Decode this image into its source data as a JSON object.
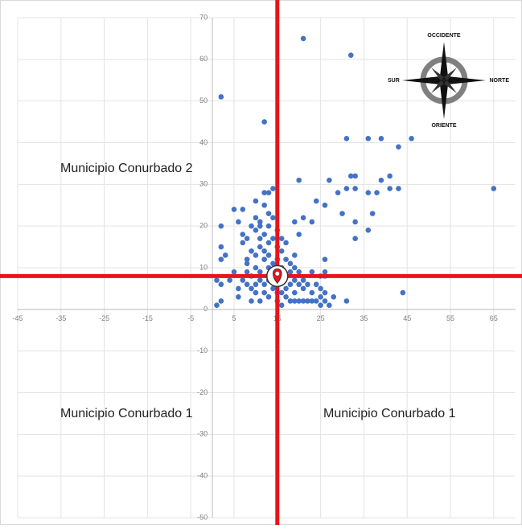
{
  "chart_data": {
    "type": "scatter",
    "x": [
      2,
      12,
      21,
      32,
      65,
      44,
      46,
      31,
      36,
      39,
      43,
      41,
      39,
      33,
      32,
      31,
      33,
      36,
      38,
      41,
      43,
      37,
      36,
      33,
      33,
      29,
      30,
      27,
      20,
      24,
      26,
      28,
      31,
      27,
      26,
      26,
      23,
      21,
      19,
      20,
      1,
      1,
      2,
      2,
      2,
      2,
      2,
      3,
      4,
      5,
      5,
      6,
      6,
      6,
      7,
      7,
      7,
      7,
      8,
      8,
      8,
      8,
      8,
      9,
      9,
      9,
      9,
      9,
      10,
      10,
      10,
      10,
      10,
      10,
      10,
      11,
      11,
      11,
      11,
      11,
      11,
      11,
      12,
      12,
      12,
      12,
      12,
      12,
      12,
      13,
      13,
      13,
      13,
      13,
      13,
      13,
      13,
      14,
      14,
      14,
      14,
      14,
      14,
      15,
      15,
      15,
      15,
      15,
      15,
      15,
      16,
      16,
      16,
      16,
      16,
      16,
      17,
      17,
      17,
      17,
      17,
      18,
      18,
      18,
      18,
      19,
      19,
      19,
      19,
      19,
      20,
      20,
      20,
      21,
      21,
      21,
      22,
      22,
      23,
      23,
      23,
      24,
      24,
      25,
      25,
      25,
      25,
      26,
      26,
      26
    ],
    "values": [
      51,
      45,
      65,
      61,
      29,
      4,
      41,
      41,
      41,
      41,
      39,
      32,
      31,
      32,
      32,
      29,
      29,
      28,
      28,
      29,
      29,
      23,
      19,
      21,
      17,
      28,
      23,
      31,
      31,
      26,
      25,
      3,
      2,
      1,
      9,
      12,
      21,
      22,
      21,
      18,
      7,
      1,
      2,
      6,
      12,
      15,
      20,
      13,
      7,
      9,
      24,
      3,
      5,
      21,
      7,
      16,
      18,
      24,
      6,
      11,
      12,
      17,
      9,
      2,
      5,
      8,
      14,
      20,
      4,
      6,
      10,
      13,
      19,
      22,
      26,
      2,
      7,
      9,
      15,
      17,
      20,
      21,
      4,
      6,
      12,
      14,
      18,
      25,
      28,
      3,
      7,
      10,
      13,
      16,
      20,
      23,
      28,
      5,
      9,
      11,
      17,
      22,
      29,
      2,
      4,
      6,
      9,
      12,
      15,
      19,
      1,
      4,
      7,
      10,
      14,
      17,
      3,
      5,
      8,
      12,
      16,
      2,
      6,
      9,
      11,
      2,
      4,
      7,
      10,
      13,
      2,
      6,
      9,
      2,
      5,
      7,
      2,
      6,
      2,
      4,
      9,
      2,
      6,
      1,
      3,
      5,
      8,
      2,
      4,
      8
    ],
    "color": "#4472c4",
    "xlim": [
      -45,
      70
    ],
    "xticks": [
      -45,
      -35,
      -25,
      -15,
      -5,
      5,
      15,
      25,
      35,
      45,
      55,
      65
    ],
    "ylim": [
      -50,
      70
    ],
    "yticks": [
      -50,
      -40,
      -30,
      -20,
      -10,
      0,
      10,
      20,
      30,
      40,
      50,
      60,
      70
    ],
    "grid": true,
    "ref_x": 15,
    "ref_y": 8,
    "ref_color": "#e8141b",
    "quadrant_labels": [
      "Municipio Conurbado 2",
      "Municipio Conurbado 1",
      "Municipio Conurbado 1"
    ],
    "compass": {
      "top": "OCCIDENTE",
      "left": "SUR",
      "right": "NORTE",
      "bottom": "ORIENTE"
    }
  }
}
